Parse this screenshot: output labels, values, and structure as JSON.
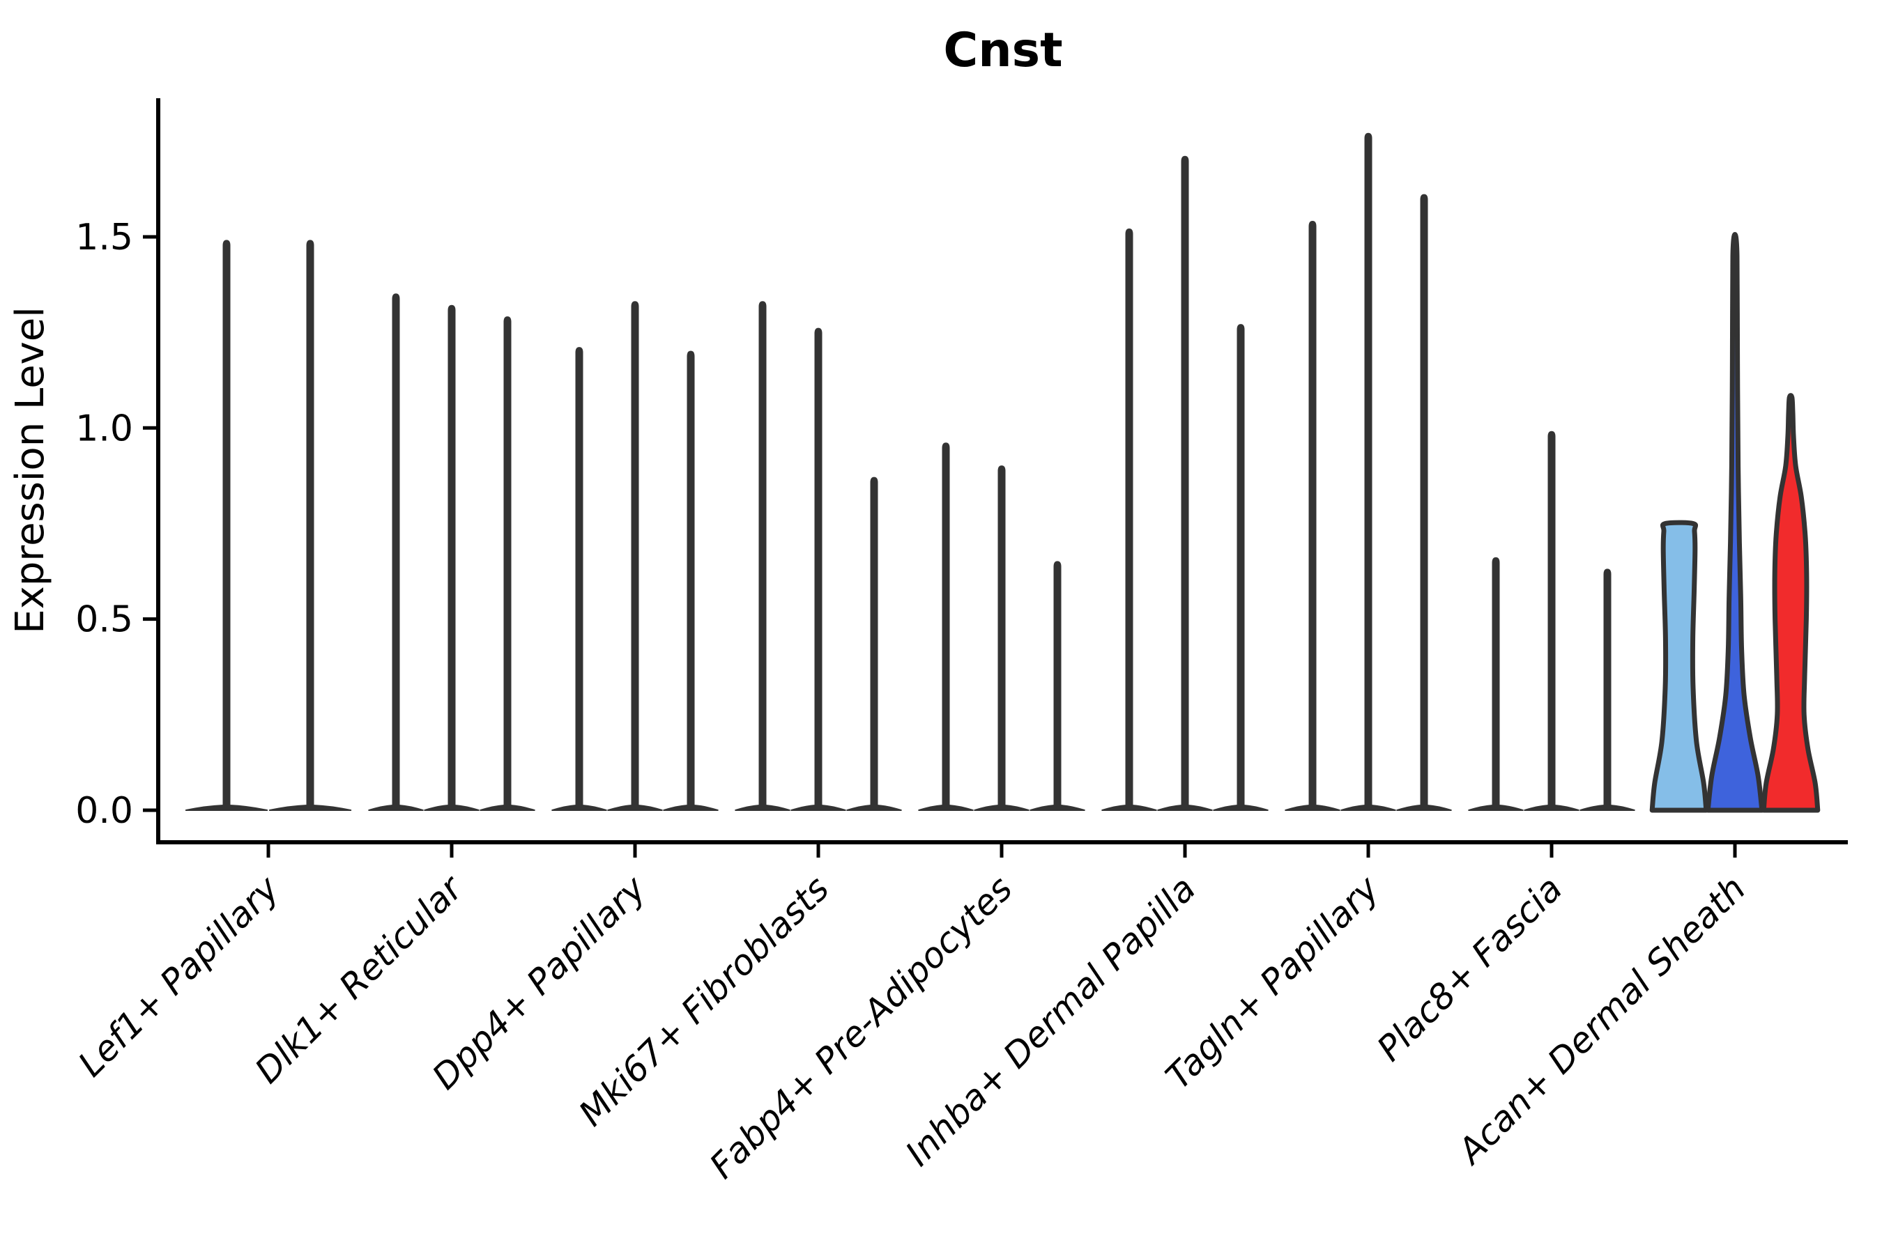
{
  "chart_data": {
    "type": "violin",
    "title": "Cnst",
    "ylabel": "Expression Level",
    "xlabel": "",
    "grid": false,
    "legend_position": "none",
    "ylim": [
      -0.084,
      1.863
    ],
    "ytick_values": [
      0.0,
      0.5,
      1.0,
      1.5
    ],
    "ytick_labels": [
      "0.0",
      "0.5",
      "1.0",
      "1.5"
    ],
    "categories": [
      "Lef1+ Papillary",
      "Dlk1+ Reticular",
      "Dpp4+ Papillary",
      "Mki67+ Fibroblasts",
      "Fabp4+ Pre-Adipocytes",
      "Inhba+ Dermal Papilla",
      "Tagln+ Papillary",
      "Plac8+ Fascia",
      "Acan+ Dermal Sheath"
    ],
    "colors": {
      "spike": "#333333",
      "outline": "#333333",
      "axis": "#000000",
      "acan_light_blue": "#85BEE8",
      "acan_dark_blue": "#3E63DC",
      "acan_red": "#F12B2C"
    },
    "groups": [
      {
        "category": "Lef1+ Papillary",
        "violins": [
          {
            "style": "spike",
            "max": 1.49
          },
          {
            "style": "spike",
            "max": 1.49
          }
        ]
      },
      {
        "category": "Dlk1+ Reticular",
        "violins": [
          {
            "style": "spike",
            "max": 1.35
          },
          {
            "style": "spike",
            "max": 1.32
          },
          {
            "style": "spike",
            "max": 1.29
          }
        ]
      },
      {
        "category": "Dpp4+ Papillary",
        "violins": [
          {
            "style": "spike",
            "max": 1.21
          },
          {
            "style": "spike",
            "max": 1.33
          },
          {
            "style": "spike",
            "max": 1.2
          }
        ]
      },
      {
        "category": "Mki67+ Fibroblasts",
        "violins": [
          {
            "style": "spike",
            "max": 1.33
          },
          {
            "style": "spike",
            "max": 1.26
          },
          {
            "style": "spike",
            "max": 0.87
          }
        ]
      },
      {
        "category": "Fabp4+ Pre-Adipocytes",
        "violins": [
          {
            "style": "spike",
            "max": 0.96
          },
          {
            "style": "spike",
            "max": 0.9
          },
          {
            "style": "spike",
            "max": 0.65
          }
        ]
      },
      {
        "category": "Inhba+ Dermal Papilla",
        "violins": [
          {
            "style": "spike",
            "max": 1.52
          },
          {
            "style": "spike",
            "max": 1.71
          },
          {
            "style": "spike",
            "max": 1.27
          }
        ]
      },
      {
        "category": "Tagln+ Papillary",
        "violins": [
          {
            "style": "spike",
            "max": 1.54
          },
          {
            "style": "spike",
            "max": 1.77
          },
          {
            "style": "spike",
            "max": 1.61
          }
        ]
      },
      {
        "category": "Plac8+ Fascia",
        "violins": [
          {
            "style": "spike",
            "max": 0.66
          },
          {
            "style": "spike",
            "max": 0.99
          },
          {
            "style": "spike",
            "max": 0.63
          }
        ]
      },
      {
        "category": "Acan+ Dermal Sheath",
        "violins": [
          {
            "style": "profile",
            "max": 0.75,
            "color": "#85BEE8",
            "flat_top": true,
            "profile": [
              [
                0,
                0.97
              ],
              [
                0.07,
                0.88
              ],
              [
                0.18,
                0.62
              ],
              [
                0.32,
                0.5
              ],
              [
                0.45,
                0.49
              ],
              [
                0.58,
                0.54
              ],
              [
                0.68,
                0.57
              ],
              [
                0.73,
                0.55
              ],
              [
                0.75,
                0.5
              ]
            ]
          },
          {
            "style": "profile",
            "max": 1.5,
            "color": "#3E63DC",
            "flat_top": false,
            "profile": [
              [
                0,
                0.97
              ],
              [
                0.09,
                0.83
              ],
              [
                0.19,
                0.55
              ],
              [
                0.3,
                0.33
              ],
              [
                0.42,
                0.24
              ],
              [
                0.55,
                0.21
              ],
              [
                0.7,
                0.16
              ],
              [
                0.9,
                0.115
              ],
              [
                1.1,
                0.095
              ],
              [
                1.3,
                0.085
              ],
              [
                1.45,
                0.075
              ],
              [
                1.5,
                0.035
              ]
            ]
          },
          {
            "style": "profile",
            "max": 1.08,
            "color": "#F12B2C",
            "flat_top": false,
            "profile": [
              [
                0,
                0.97
              ],
              [
                0.07,
                0.88
              ],
              [
                0.16,
                0.62
              ],
              [
                0.25,
                0.48
              ],
              [
                0.35,
                0.5
              ],
              [
                0.5,
                0.56
              ],
              [
                0.62,
                0.57
              ],
              [
                0.72,
                0.52
              ],
              [
                0.82,
                0.38
              ],
              [
                0.9,
                0.18
              ],
              [
                0.98,
                0.1
              ],
              [
                1.04,
                0.075
              ],
              [
                1.08,
                0.045
              ]
            ]
          }
        ]
      }
    ]
  }
}
